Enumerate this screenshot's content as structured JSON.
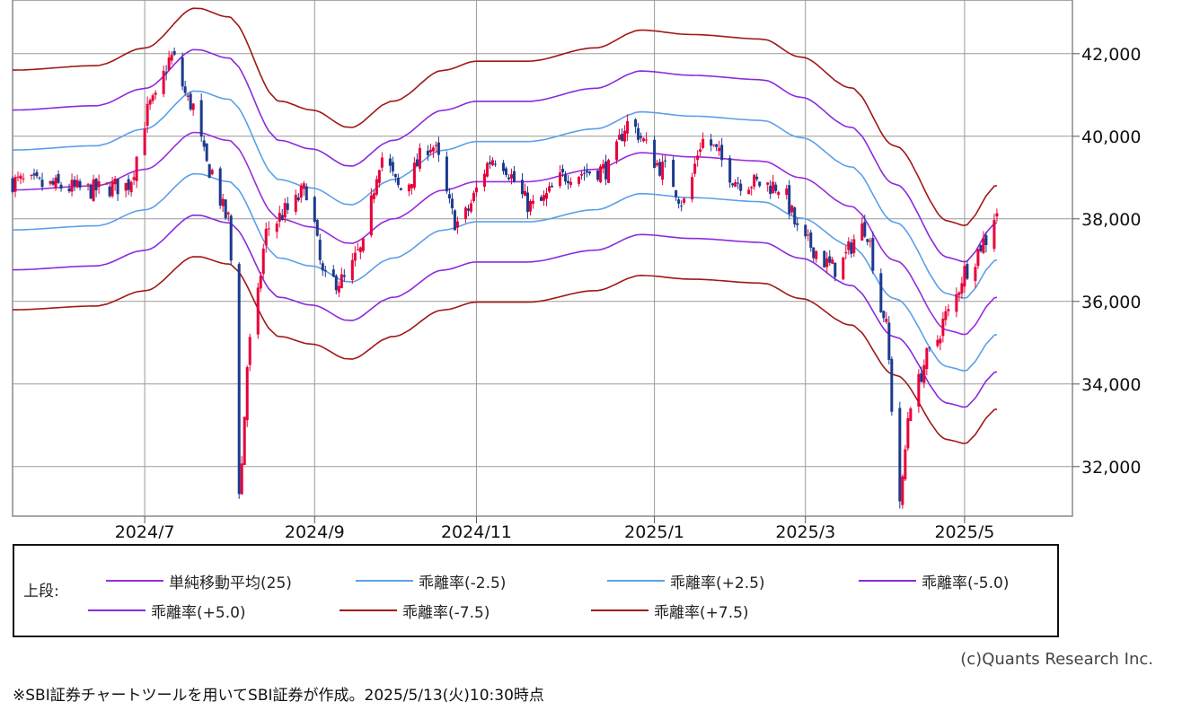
{
  "chart_data": {
    "type": "candlestick",
    "y_ticks": [
      "42,000",
      "40,000",
      "38,000",
      "36,000",
      "34,000",
      "32,000"
    ],
    "y_tick_values": [
      42000,
      40000,
      38000,
      36000,
      34000,
      32000
    ],
    "ylim": [
      30800,
      43300
    ],
    "x_tick_labels": [
      "2024/7",
      "2024/9",
      "2024/11",
      "2025/1",
      "2025/3",
      "2025/5"
    ],
    "x_range": [
      "2024-05-13",
      "2025-06-10"
    ],
    "x_tick_dates": [
      "2024-07-01",
      "2024-09-02",
      "2024-11-01",
      "2025-01-06",
      "2025-03-03",
      "2025-05-01"
    ],
    "grid": true,
    "candle_colors": {
      "up": "#e8003a",
      "down": "#1c3a8c"
    },
    "close_anchors": [
      [
        "2024-05-13",
        38900
      ],
      [
        "2024-05-27",
        38800
      ],
      [
        "2024-06-10",
        38700
      ],
      [
        "2024-06-24",
        38800
      ],
      [
        "2024-07-04",
        40800
      ],
      [
        "2024-07-11",
        41900
      ],
      [
        "2024-07-18",
        40800
      ],
      [
        "2024-07-25",
        39200
      ],
      [
        "2024-08-01",
        38000
      ],
      [
        "2024-08-05",
        31500
      ],
      [
        "2024-08-09",
        35000
      ],
      [
        "2024-08-16",
        37800
      ],
      [
        "2024-08-23",
        38200
      ],
      [
        "2024-08-30",
        38700
      ],
      [
        "2024-09-06",
        36500
      ],
      [
        "2024-09-13",
        36500
      ],
      [
        "2024-09-19",
        37200
      ],
      [
        "2024-09-27",
        39500
      ],
      [
        "2024-10-04",
        38700
      ],
      [
        "2024-10-15",
        39800
      ],
      [
        "2024-10-25",
        37900
      ],
      [
        "2024-11-08",
        39500
      ],
      [
        "2024-11-22",
        38300
      ],
      [
        "2024-12-06",
        39100
      ],
      [
        "2024-12-20",
        39200
      ],
      [
        "2024-12-27",
        40300
      ],
      [
        "2025-01-10",
        39200
      ],
      [
        "2025-01-17",
        38400
      ],
      [
        "2025-01-24",
        39900
      ],
      [
        "2025-02-07",
        38900
      ],
      [
        "2025-02-21",
        38800
      ],
      [
        "2025-03-03",
        37400
      ],
      [
        "2025-03-14",
        36800
      ],
      [
        "2025-03-25",
        37800
      ],
      [
        "2025-04-01",
        35700
      ],
      [
        "2025-04-07",
        31200
      ],
      [
        "2025-04-11",
        33600
      ],
      [
        "2025-04-18",
        34700
      ],
      [
        "2025-04-25",
        35700
      ],
      [
        "2025-05-02",
        36800
      ],
      [
        "2025-05-09",
        37500
      ],
      [
        "2025-05-13",
        38200
      ]
    ],
    "ma25_anchors": [
      [
        "2024-05-13",
        38700
      ],
      [
        "2024-06-13",
        38800
      ],
      [
        "2024-07-01",
        39200
      ],
      [
        "2024-07-20",
        40100
      ],
      [
        "2024-08-01",
        39900
      ],
      [
        "2024-08-20",
        38000
      ],
      [
        "2024-09-01",
        37800
      ],
      [
        "2024-09-15",
        37400
      ],
      [
        "2024-10-01",
        38000
      ],
      [
        "2024-10-20",
        38700
      ],
      [
        "2024-11-01",
        38900
      ],
      [
        "2024-11-20",
        38900
      ],
      [
        "2024-12-15",
        39200
      ],
      [
        "2025-01-01",
        39600
      ],
      [
        "2025-01-20",
        39500
      ],
      [
        "2025-02-15",
        39400
      ],
      [
        "2025-03-01",
        39000
      ],
      [
        "2025-03-20",
        38300
      ],
      [
        "2025-04-05",
        37000
      ],
      [
        "2025-04-25",
        35300
      ],
      [
        "2025-05-01",
        35200
      ],
      [
        "2025-05-13",
        36100
      ]
    ],
    "series": [
      {
        "name": "単純移動平均(25)",
        "deviation_pct": 0,
        "color": "#9a2bdf"
      },
      {
        "name": "乖離率(-2.5)",
        "deviation_pct": -2.5,
        "color": "#5aa0ea"
      },
      {
        "name": "乖離率(+2.5)",
        "deviation_pct": 2.5,
        "color": "#5aa0ea"
      },
      {
        "name": "乖離率(-5.0)",
        "deviation_pct": -5.0,
        "color": "#8a2ae0"
      },
      {
        "name": "乖離率(+5.0)",
        "deviation_pct": 5.0,
        "color": "#8a2ae0"
      },
      {
        "name": "乖離率(-7.5)",
        "deviation_pct": -7.5,
        "color": "#a01818"
      },
      {
        "name": "乖離率(+7.5)",
        "deviation_pct": 7.5,
        "color": "#a01818"
      }
    ]
  },
  "legend": {
    "prefix": "上段:",
    "items": [
      "単純移動平均(25)",
      "乖離率(-2.5)",
      "乖離率(+2.5)",
      "乖離率(-5.0)",
      "乖離率(+5.0)",
      "乖離率(-7.5)",
      "乖離率(+7.5)"
    ]
  },
  "copyright": "(c)Quants Research Inc.",
  "footnote": "※SBI証券チャートツールを用いてSBI証券が作成。2025/5/13(火)10:30時点"
}
